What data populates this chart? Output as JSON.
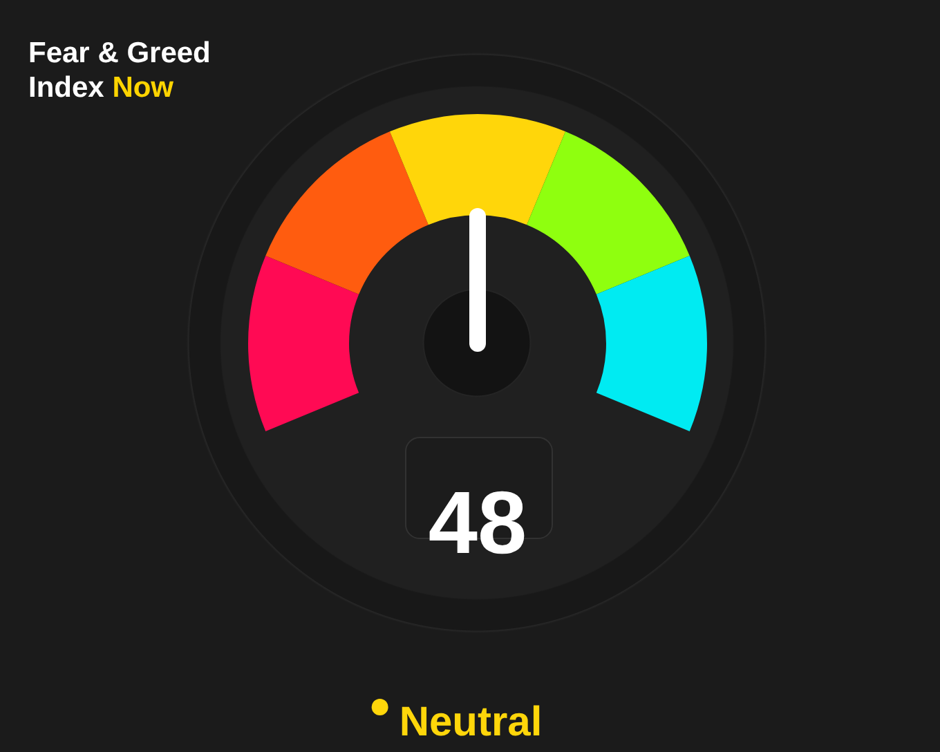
{
  "chart_data": {
    "type": "donut",
    "title": "Fear & Greed Index Now",
    "categories": [
      null,
      null,
      "Neutral",
      null,
      null
    ],
    "values": [
      20,
      20,
      20,
      20,
      20
    ],
    "colors": [
      "#ff0a54",
      "#ff5c0f",
      "#ffd60a",
      "#8fff0f",
      "#00ebf2"
    ],
    "needle": "Neutral",
    "annotations": [
      "48"
    ]
  }
}
